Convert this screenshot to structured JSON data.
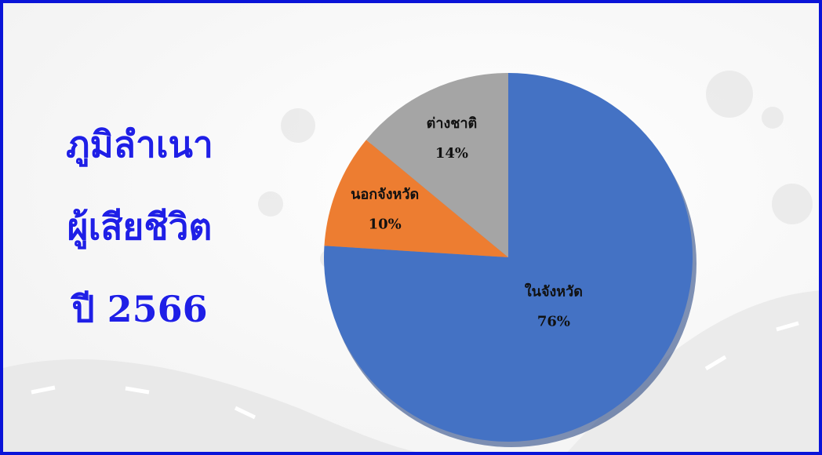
{
  "chart_data": {
    "type": "pie",
    "title": [
      "ภูมิลำเนา",
      "ผู้เสียชีวิต",
      "ปี 2566"
    ],
    "categories": [
      "ในจังหวัด",
      "นอกจังหวัด",
      "ต่างชาติ"
    ],
    "values": [
      76,
      10,
      14
    ],
    "value_labels": [
      "76%",
      "10%",
      "14%"
    ],
    "colors": [
      "#4472c4",
      "#ed7d31",
      "#a5a5a5"
    ]
  }
}
